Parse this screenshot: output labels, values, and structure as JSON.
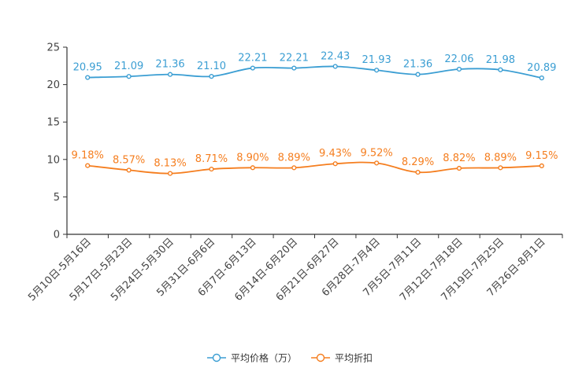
{
  "chart_data": {
    "type": "line",
    "title": "",
    "xlabel": "",
    "ylabel": "",
    "ylim": [
      0,
      25
    ],
    "yticks": [
      0,
      5,
      10,
      15,
      20,
      25
    ],
    "categories": [
      "5月10日-5月16日",
      "5月17日-5月23日",
      "5月24日-5月30日",
      "5月31日-6月6日",
      "6月7日-6月13日",
      "6月14日-6月20日",
      "6月21日-6月27日",
      "6月28日-7月4日",
      "7月5日-7月11日",
      "7月12日-7月18日",
      "7月19日-7月25日",
      "7月26日-8月1日"
    ],
    "series": [
      {
        "name": "平均价格（万）",
        "color": "#3b9ed3",
        "values": [
          20.95,
          21.09,
          21.36,
          21.1,
          22.21,
          22.21,
          22.43,
          21.93,
          21.36,
          22.06,
          21.98,
          20.89
        ],
        "labels": [
          "20.95",
          "21.09",
          "21.36",
          "21.10",
          "22.21",
          "22.21",
          "22.43",
          "21.93",
          "21.36",
          "22.06",
          "21.98",
          "20.89"
        ]
      },
      {
        "name": "平均折扣",
        "color": "#f57e1f",
        "values": [
          9.18,
          8.57,
          8.13,
          8.71,
          8.9,
          8.89,
          9.43,
          9.52,
          8.29,
          8.82,
          8.89,
          9.15
        ],
        "labels": [
          "9.18%",
          "8.57%",
          "8.13%",
          "8.71%",
          "8.90%",
          "8.89%",
          "9.43%",
          "9.52%",
          "8.29%",
          "8.82%",
          "8.89%",
          "9.15%"
        ]
      }
    ],
    "legend": {
      "position": "bottom-center"
    },
    "grid": false
  }
}
